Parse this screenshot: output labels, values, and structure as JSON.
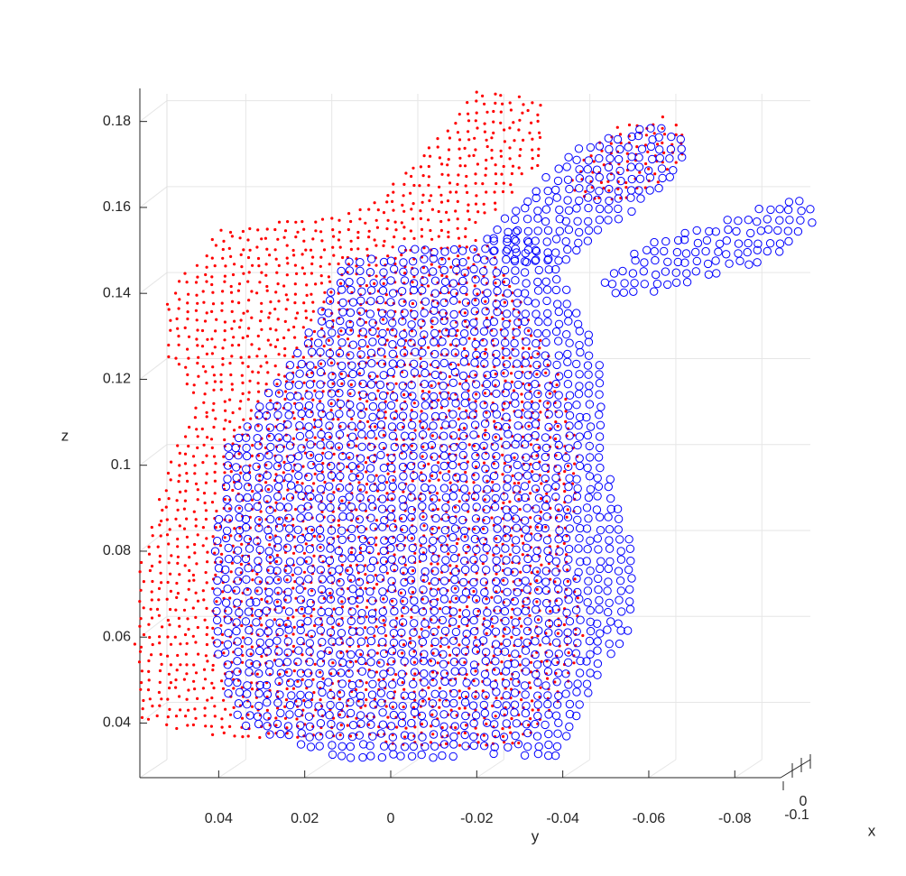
{
  "chart_data": {
    "type": "scatter",
    "title": "",
    "xlabel": "x",
    "ylabel": "y",
    "zlabel": "z",
    "view": "3-D view, nearly looking along the x axis",
    "grid": true,
    "ylim": [
      -0.1,
      0.06
    ],
    "zlim": [
      0.03,
      0.19
    ],
    "xlim": [
      -0.1,
      0
    ],
    "y_ticks": [
      "0.04",
      "0.02",
      "0",
      "-0.02",
      "-0.04",
      "-0.06",
      "-0.08"
    ],
    "z_ticks": [
      "0.04",
      "0.06",
      "0.08",
      "0.1",
      "0.12",
      "0.14",
      "0.16",
      "0.18"
    ],
    "x_ticks": [
      "0",
      "-0.1"
    ],
    "series": [
      {
        "color": "#ff0000",
        "marker": "dot",
        "description_points": "point cloud sampled on the model's outline (shifted)",
        "body_outline": [
          [
            0.058,
            0.04
          ],
          [
            0.06,
            0.06
          ],
          [
            0.058,
            0.08
          ],
          [
            0.052,
            0.1
          ],
          [
            0.045,
            0.115
          ],
          [
            0.052,
            0.125
          ],
          [
            0.052,
            0.14
          ],
          [
            0.04,
            0.155
          ],
          [
            0.025,
            0.157
          ],
          [
            0.005,
            0.16
          ],
          [
            -0.01,
            0.175
          ],
          [
            -0.02,
            0.188
          ],
          [
            -0.035,
            0.185
          ],
          [
            -0.035,
            0.17
          ],
          [
            -0.02,
            0.155
          ],
          [
            -0.03,
            0.14
          ],
          [
            -0.04,
            0.12
          ],
          [
            -0.045,
            0.1
          ],
          [
            -0.042,
            0.08
          ],
          [
            -0.045,
            0.06
          ],
          [
            -0.04,
            0.045
          ],
          [
            -0.03,
            0.035
          ],
          [
            -0.01,
            0.033
          ],
          [
            0.01,
            0.036
          ],
          [
            0.03,
            0.036
          ],
          [
            0.05,
            0.038
          ]
        ],
        "ear_outline": [
          [
            -0.04,
            0.165
          ],
          [
            -0.05,
            0.178
          ],
          [
            -0.065,
            0.182
          ],
          [
            -0.07,
            0.175
          ],
          [
            -0.062,
            0.165
          ],
          [
            -0.05,
            0.16
          ]
        ]
      },
      {
        "color": "#0000ff",
        "marker": "circle",
        "description_points": "point cloud sampled on the model's outline",
        "body_outline": [
          [
            0.04,
            0.05
          ],
          [
            0.042,
            0.07
          ],
          [
            0.04,
            0.09
          ],
          [
            0.038,
            0.105
          ],
          [
            0.03,
            0.115
          ],
          [
            0.02,
            0.13
          ],
          [
            0.01,
            0.148
          ],
          [
            -0.005,
            0.151
          ],
          [
            -0.02,
            0.152
          ],
          [
            -0.03,
            0.155
          ],
          [
            -0.04,
            0.145
          ],
          [
            -0.045,
            0.135
          ],
          [
            -0.05,
            0.12
          ],
          [
            -0.05,
            0.1
          ],
          [
            -0.055,
            0.085
          ],
          [
            -0.058,
            0.075
          ],
          [
            -0.055,
            0.06
          ],
          [
            -0.045,
            0.045
          ],
          [
            -0.04,
            0.032
          ],
          [
            -0.02,
            0.033
          ],
          [
            0,
            0.03
          ],
          [
            0.02,
            0.033
          ],
          [
            0.035,
            0.04
          ]
        ],
        "ear1_outline": [
          [
            -0.02,
            0.15
          ],
          [
            -0.03,
            0.162
          ],
          [
            -0.045,
            0.175
          ],
          [
            -0.06,
            0.18
          ],
          [
            -0.07,
            0.176
          ],
          [
            -0.065,
            0.165
          ],
          [
            -0.05,
            0.155
          ],
          [
            -0.04,
            0.145
          ]
        ],
        "ear2_outline": [
          [
            -0.045,
            0.14
          ],
          [
            -0.06,
            0.152
          ],
          [
            -0.08,
            0.158
          ],
          [
            -0.095,
            0.163
          ],
          [
            -0.1,
            0.158
          ],
          [
            -0.092,
            0.15
          ],
          [
            -0.08,
            0.145
          ],
          [
            -0.06,
            0.14
          ]
        ]
      }
    ]
  }
}
